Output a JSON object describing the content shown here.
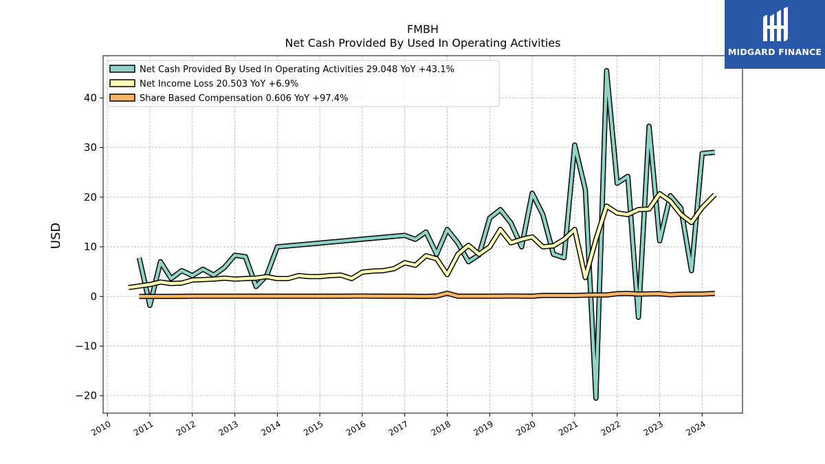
{
  "chart_data": {
    "type": "line",
    "title": "FMBH",
    "subtitle": "Net Cash Provided By Used In Operating Activities",
    "ylabel": "USD",
    "xlabel": "",
    "xlim": [
      2009.9,
      2024.95
    ],
    "ylim": [
      -23.5,
      48.5
    ],
    "yticks": [
      -20,
      -10,
      0,
      10,
      20,
      30,
      40
    ],
    "ytick_labels": [
      "−20",
      "−10",
      "0",
      "10",
      "20",
      "30",
      "40"
    ],
    "xticks": [
      2010,
      2011,
      2012,
      2013,
      2014,
      2015,
      2016,
      2017,
      2018,
      2019,
      2020,
      2021,
      2022,
      2023,
      2024
    ],
    "xtick_labels": [
      "2010",
      "2011",
      "2012",
      "2013",
      "2014",
      "2015",
      "2016",
      "2017",
      "2018",
      "2019",
      "2020",
      "2021",
      "2022",
      "2023",
      "2024"
    ],
    "grid": true,
    "legend_position": "top-left",
    "series": [
      {
        "name": "Net Cash Provided By Used In Operating Activities",
        "legend_label": "Net Cash Provided By Used In Operating Activities  29.048 YoY +43.1%",
        "color": "#8dd3c7",
        "x": [
          2010.75,
          2011.0,
          2011.25,
          2011.5,
          2011.75,
          2012.0,
          2012.25,
          2012.5,
          2012.75,
          2013.0,
          2013.25,
          2013.5,
          2013.75,
          2014.0,
          2017.0,
          2017.25,
          2017.5,
          2017.75,
          2018.0,
          2018.25,
          2018.5,
          2018.75,
          2019.0,
          2019.25,
          2019.5,
          2019.75,
          2020.0,
          2020.25,
          2020.5,
          2020.75,
          2021.0,
          2021.25,
          2021.5,
          2021.75,
          2022.0,
          2022.25,
          2022.5,
          2022.75,
          2023.0,
          2023.25,
          2023.5,
          2023.75,
          2024.0,
          2024.3
        ],
        "y": [
          7.8,
          -1.8,
          7.0,
          3.6,
          5.2,
          4.2,
          5.5,
          4.3,
          5.8,
          8.3,
          8.0,
          2.0,
          4.2,
          10.0,
          12.3,
          11.5,
          13.0,
          8.5,
          13.5,
          10.8,
          7.0,
          8.4,
          15.8,
          17.5,
          14.8,
          10.0,
          20.8,
          16.5,
          8.5,
          7.8,
          30.5,
          21.5,
          -20.5,
          45.5,
          22.8,
          24.2,
          -4.2,
          34.3,
          11.2,
          20.3,
          17.8,
          5.2,
          28.8,
          29.05
        ]
      },
      {
        "name": "Net Income Loss",
        "legend_label": "Net Income Loss  20.503 YoY +6.9%",
        "color": "#ffffb3",
        "x": [
          2010.5,
          2010.75,
          2011.0,
          2011.25,
          2011.5,
          2011.75,
          2012.0,
          2012.25,
          2012.5,
          2012.75,
          2013.0,
          2013.25,
          2013.5,
          2013.75,
          2014.0,
          2014.25,
          2014.5,
          2014.75,
          2015.0,
          2015.25,
          2015.5,
          2015.75,
          2016.0,
          2016.25,
          2016.5,
          2016.75,
          2017.0,
          2017.25,
          2017.5,
          2017.75,
          2018.0,
          2018.25,
          2018.5,
          2018.75,
          2019.0,
          2019.25,
          2019.5,
          2019.75,
          2020.0,
          2020.25,
          2020.5,
          2020.75,
          2021.0,
          2021.25,
          2021.5,
          2021.75,
          2022.0,
          2022.25,
          2022.5,
          2022.75,
          2023.0,
          2023.25,
          2023.5,
          2023.75,
          2024.0,
          2024.3
        ],
        "y": [
          1.8,
          2.1,
          2.4,
          2.9,
          2.6,
          2.7,
          3.3,
          3.4,
          3.5,
          3.7,
          3.5,
          3.6,
          3.7,
          4.0,
          3.6,
          3.6,
          4.2,
          4.0,
          4.0,
          4.2,
          4.3,
          3.6,
          4.9,
          5.1,
          5.2,
          5.6,
          6.8,
          6.3,
          8.2,
          7.6,
          4.4,
          8.5,
          10.3,
          8.5,
          10.0,
          13.5,
          10.8,
          11.5,
          12.0,
          10.0,
          10.2,
          11.5,
          13.5,
          3.8,
          11.5,
          18.2,
          16.8,
          16.5,
          17.5,
          17.6,
          20.7,
          19.2,
          16.5,
          14.9,
          17.9,
          20.5
        ]
      },
      {
        "name": "Share Based Compensation",
        "legend_label": "Share Based Compensation  0.606 YoY +97.4%",
        "color": "#fdb462",
        "x": [
          2010.75,
          2011.0,
          2011.5,
          2012.0,
          2012.5,
          2013.0,
          2013.5,
          2014.0,
          2014.5,
          2015.0,
          2015.5,
          2016.0,
          2016.5,
          2017.0,
          2017.5,
          2017.75,
          2018.0,
          2018.25,
          2018.5,
          2019.0,
          2019.5,
          2020.0,
          2020.25,
          2020.75,
          2021.0,
          2021.5,
          2021.75,
          2022.0,
          2022.25,
          2022.5,
          2023.0,
          2023.25,
          2023.5,
          2024.0,
          2024.3
        ],
        "y": [
          0.0,
          0.0,
          0.0,
          0.05,
          0.05,
          0.05,
          0.05,
          0.05,
          0.05,
          0.05,
          0.05,
          0.1,
          0.05,
          0.05,
          0.0,
          0.1,
          0.65,
          0.05,
          0.05,
          0.05,
          0.1,
          0.05,
          0.2,
          0.2,
          0.2,
          0.3,
          0.3,
          0.55,
          0.6,
          0.5,
          0.55,
          0.35,
          0.45,
          0.5,
          0.61
        ]
      }
    ]
  },
  "logo": {
    "text": "MIDGARD FINANCE",
    "color": "#2a58a8"
  }
}
